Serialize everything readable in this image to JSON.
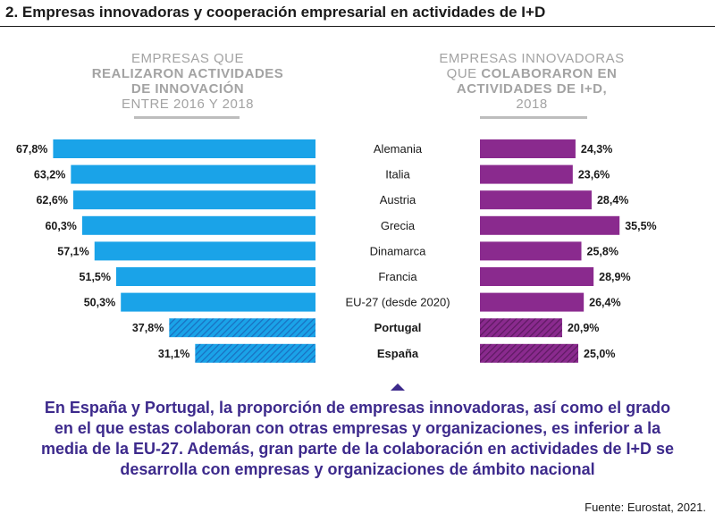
{
  "title": "2. Empresas innovadoras y cooperación empresarial en actividades de I+D",
  "left_header": {
    "line1": "EMPRESAS QUE",
    "line2": "REALIZARON ACTIVIDADES",
    "line3": "DE INNOVACIÓN",
    "line4": "ENTRE 2016 Y 2018"
  },
  "right_header": {
    "line1": "EMPRESAS INNOVADORAS",
    "line2a": "QUE ",
    "line2b": "COLABORARON EN",
    "line3": "ACTIVIDADES DE I+D,",
    "line4": "2018"
  },
  "colors": {
    "left_bar": "#1aa3e8",
    "left_hatch": "#1a6fc0",
    "right_bar": "#8a2a8e",
    "right_hatch": "#5e1a62",
    "note": "#3d2a8c"
  },
  "chart_data": {
    "type": "bar",
    "orientation": "horizontal",
    "categories": [
      "Alemania",
      "Italia",
      "Austria",
      "Grecia",
      "Dinamarca",
      "Francia",
      "EU-27 (desde 2020)",
      "Portugal",
      "España"
    ],
    "highlighted": [
      "Portugal",
      "España"
    ],
    "series": [
      {
        "values": [
          67.8,
          63.2,
          62.6,
          60.3,
          57.1,
          51.5,
          50.3,
          37.8,
          31.1
        ],
        "labels": [
          "67,8%",
          "63,2%",
          "62,6%",
          "60,3%",
          "57,1%",
          "51,5%",
          "50,3%",
          "37,8%",
          "31,1%"
        ]
      },
      {
        "values": [
          24.3,
          23.6,
          28.4,
          35.5,
          25.8,
          28.9,
          26.4,
          20.9,
          25.0
        ],
        "labels": [
          "24,3%",
          "23,6%",
          "28,4%",
          "35,5%",
          "25,8%",
          "28,9%",
          "26,4%",
          "20,9%",
          "25,0%"
        ]
      }
    ]
  },
  "note": "En España y Portugal, la proporción de empresas innovadoras, así como el grado en el que estas colaboran con otras empresas y organizaciones, es inferior a la media de la EU-27. Además, gran parte de la colaboración en actividades de I+D se desarrolla con empresas y organizaciones de ámbito nacional",
  "source": "Fuente: Eurostat, 2021."
}
